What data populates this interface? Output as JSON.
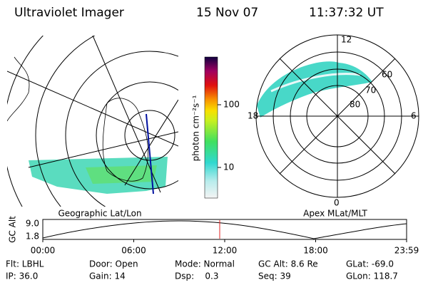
{
  "header": {
    "title": "Ultraviolet Imager",
    "date": "15 Nov 07",
    "time": "11:37:32 UT"
  },
  "colorbar": {
    "label": "photon cm⁻²s⁻¹",
    "ticks": [
      "100",
      "10"
    ]
  },
  "geo_panel": {
    "label": "Geographic Lat/Lon"
  },
  "polar_panel": {
    "label": "Apex MLat/MLT",
    "mlt_labels": [
      "12",
      "18",
      "6",
      "0"
    ],
    "lat_labels": [
      "60",
      "70",
      "80"
    ]
  },
  "orbit_plot": {
    "ylabel": "GC Alt",
    "yticks": [
      "9.0",
      "1.8"
    ],
    "xticks": [
      "00:00",
      "06:00",
      "12:00",
      "18:00",
      "23:59"
    ]
  },
  "status": {
    "rows": [
      [
        "Flt: LBHL",
        "Door: Open",
        "Mode: Normal",
        "GC Alt: 8.6 Re",
        "GLat: -69.0"
      ],
      [
        "IP: 36.0",
        "Gain: 14",
        "Dsp:    0.3",
        "Seq: 39",
        "GLon: 118.7"
      ]
    ]
  }
}
